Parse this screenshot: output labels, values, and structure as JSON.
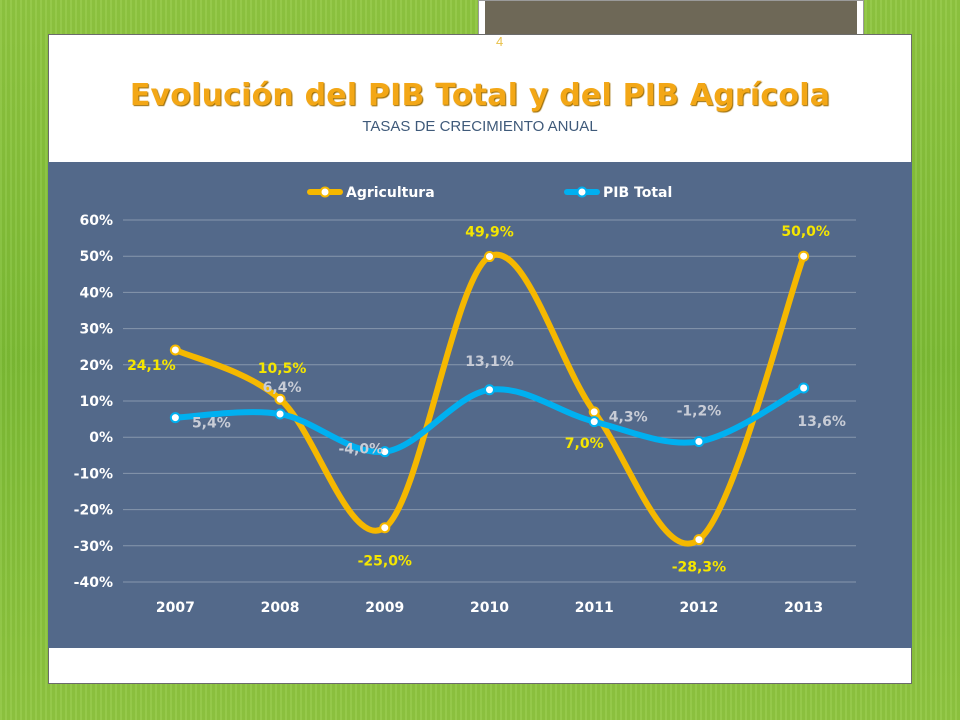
{
  "slide": {
    "page_number": "4",
    "title": "Evolución del PIB Total y del PIB Agrícola",
    "subtitle": "TASAS DE CRECIMIENTO ANUAL"
  },
  "colors": {
    "agricultura": "#f5b800",
    "pib_total": "#00b0f0",
    "plot_background": "#53698a",
    "axis_text": "#ffffff",
    "agri_label": "#f5e600",
    "pib_label": "#c8ccd6"
  },
  "chart_data": {
    "type": "line",
    "title": "",
    "xlabel": "",
    "ylabel": "",
    "categories": [
      "2007",
      "2008",
      "2009",
      "2010",
      "2011",
      "2012",
      "2013"
    ],
    "ylim": [
      -40,
      60
    ],
    "yticks": [
      60,
      50,
      40,
      30,
      20,
      10,
      0,
      -10,
      -20,
      -30,
      -40
    ],
    "ytick_labels": [
      "60%",
      "50%",
      "40%",
      "30%",
      "20%",
      "10%",
      "0%",
      "-10%",
      "-20%",
      "-30%",
      "-40%"
    ],
    "grid": true,
    "legend": "top",
    "smooth": true,
    "series": [
      {
        "name": "Agricultura",
        "values": [
          24.1,
          10.5,
          -25.0,
          49.9,
          7.0,
          -28.3,
          50.0
        ],
        "labels": [
          "24,1%",
          "10,5%",
          "-25,0%",
          "49,9%",
          "7,0%",
          "-28,3%",
          "50,0%"
        ]
      },
      {
        "name": "PIB Total",
        "values": [
          5.4,
          6.4,
          -4.0,
          13.1,
          4.3,
          -1.2,
          13.6
        ],
        "labels": [
          "5,4%",
          "6,4%",
          "-4,0%",
          "13,1%",
          "4,3%",
          "-1,2%",
          "13,6%"
        ]
      }
    ]
  }
}
